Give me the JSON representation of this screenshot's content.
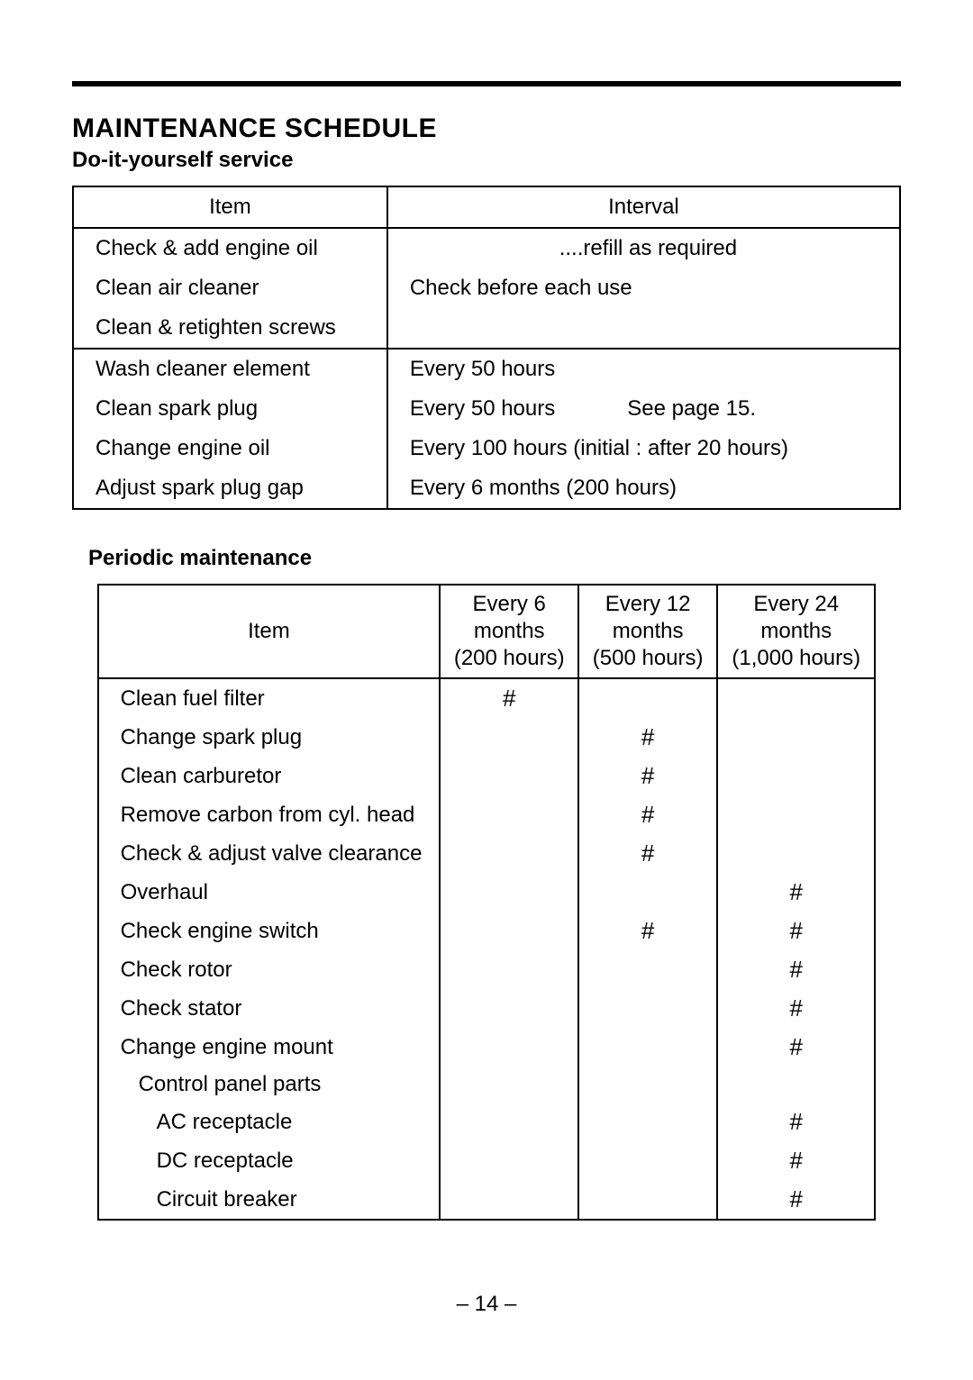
{
  "title": "MAINTENANCE SCHEDULE",
  "diy": {
    "subtitle": "Do-it-yourself service",
    "headers": {
      "item": "Item",
      "interval": "Interval"
    },
    "rows": [
      {
        "item": "Check  & add engine oil",
        "interval": "....refill as required",
        "center": true,
        "topBorder": true
      },
      {
        "item": "Clean air cleaner",
        "interval": "Check before each use"
      },
      {
        "item": "Clean & retighten screws",
        "interval": "",
        "bottomBorder": true
      },
      {
        "item": "Wash cleaner element",
        "interval": "Every 50 hours"
      },
      {
        "item": "Clean spark plug",
        "interval": "Every 50 hours",
        "note": "See page 15."
      },
      {
        "item": "Change engine oil",
        "interval": "Every 100 hours (initial : after 20 hours)"
      },
      {
        "item": "Adjust spark plug gap",
        "interval": "Every 6 months (200 hours)",
        "bottomBorder": true
      }
    ]
  },
  "periodic": {
    "subtitle": "Periodic maintenance",
    "headers": {
      "item": "Item",
      "c6a": "Every 6",
      "c6b": "months",
      "c6c": "(200 hours)",
      "c12a": "Every 12",
      "c12b": "months",
      "c12c": "(500 hours)",
      "c24a": "Every 24",
      "c24b": "months",
      "c24c": "(1,000 hours)"
    },
    "mark": "#",
    "rows": [
      {
        "item": "Clean fuel filter",
        "c6": true
      },
      {
        "item": "Change spark plug",
        "c12": true
      },
      {
        "item": "Clean carburetor",
        "c12": true
      },
      {
        "item": "Remove carbon from cyl. head",
        "c12": true
      },
      {
        "item": "Check  & adjust valve clearance",
        "c12": true
      },
      {
        "item": "Overhaul",
        "c24": true
      },
      {
        "item": "Check engine switch",
        "c12": true,
        "c24": true
      },
      {
        "item": "Check rotor",
        "c24": true
      },
      {
        "item": "Check stator",
        "c24": true
      },
      {
        "item": "Change engine mount",
        "c24": true
      },
      {
        "item": "Control panel parts",
        "indent": 1
      },
      {
        "item": "AC receptacle",
        "indent": 2,
        "c24": true
      },
      {
        "item": "DC receptacle",
        "indent": 2,
        "c24": true
      },
      {
        "item": "Circuit breaker",
        "indent": 2,
        "c24": true
      }
    ]
  },
  "pageNumber": "–  14  –"
}
